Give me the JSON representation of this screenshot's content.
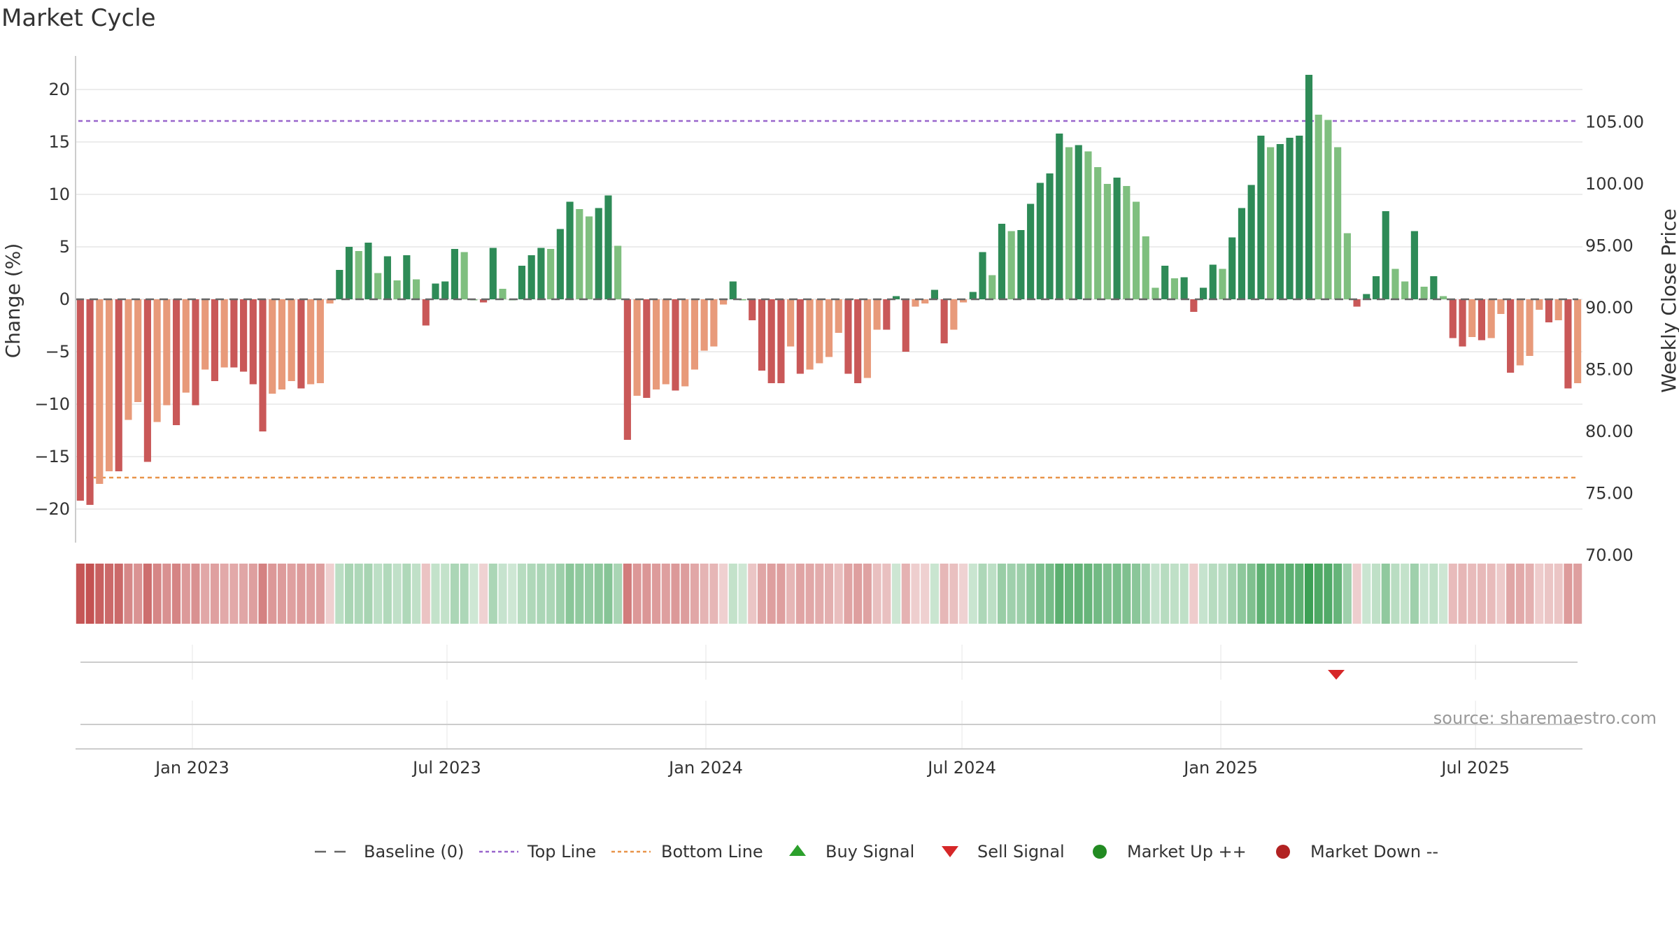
{
  "chart_data": {
    "type": "bar",
    "title": "Market Cycle",
    "ylabel_left": "Change (%)",
    "ylabel_right": "Weekly Close Price",
    "ylim_left": [
      -23,
      23
    ],
    "ylim_right": [
      67.5,
      107.5
    ],
    "yticks_left": [
      "20",
      "15",
      "10",
      "5",
      "0",
      "−5",
      "−10",
      "−15",
      "−20"
    ],
    "yticks_left_values": [
      20,
      15,
      10,
      5,
      0,
      -5,
      -10,
      -15,
      -20
    ],
    "yticks_right": [
      "105.00",
      "100.00",
      "95.00",
      "90.00",
      "85.00",
      "80.00",
      "75.00",
      "70.00"
    ],
    "yticks_right_values": [
      105,
      100,
      95,
      90,
      85,
      80,
      75,
      70
    ],
    "x_start": "2022-10-10",
    "x_end": "2025-09-15",
    "x_ticks": [
      {
        "date": "2023-01-01",
        "label": "Jan 2023"
      },
      {
        "date": "2023-07-01",
        "label": "Jul 2023"
      },
      {
        "date": "2024-01-01",
        "label": "Jan 2024"
      },
      {
        "date": "2024-07-01",
        "label": "Jul 2024"
      },
      {
        "date": "2025-01-01",
        "label": "Jan 2025"
      },
      {
        "date": "2025-07-01",
        "label": "Jul 2025"
      }
    ],
    "top_line": 17,
    "bottom_line": -17,
    "colors": {
      "strong_up": "#2e8b57",
      "weak_up": "#7fbf7f",
      "strong_down": "#c95858",
      "weak_down": "#e89a7a",
      "top_line": "#9966cc",
      "bottom_line": "#e8944a",
      "baseline": "#666666",
      "sell_signal": "#d62728",
      "buy_signal": "#2ca02c"
    },
    "values": [
      -19.2,
      -19.6,
      -17.6,
      -16.4,
      -16.4,
      -11.5,
      -9.8,
      -15.5,
      -11.7,
      -10.1,
      -12,
      -8.9,
      -10.1,
      -6.7,
      -7.8,
      -6.5,
      -6.5,
      -6.9,
      -8.1,
      -12.6,
      -9,
      -8.6,
      -7.8,
      -8.5,
      -8.1,
      -8,
      -0.4,
      2.8,
      5,
      4.6,
      5.4,
      2.5,
      4.1,
      1.8,
      4.2,
      1.9,
      -2.5,
      1.5,
      1.7,
      4.8,
      4.5,
      0,
      -0.3,
      4.9,
      1,
      0,
      3.2,
      4.2,
      4.9,
      4.8,
      6.7,
      9.3,
      8.6,
      7.9,
      8.7,
      9.9,
      5.1,
      -13.4,
      -9.2,
      -9.4,
      -8.6,
      -8.1,
      -8.7,
      -8.3,
      -6.7,
      -4.9,
      -4.5,
      -0.5,
      1.7,
      0,
      -2,
      -6.8,
      -8,
      -8,
      -4.5,
      -7.1,
      -6.7,
      -6.1,
      -5.5,
      -3.2,
      -7.1,
      -8,
      -7.5,
      -2.9,
      -2.9,
      0.3,
      -5,
      -0.7,
      -0.4,
      0.9,
      -4.2,
      -2.9,
      -0.3,
      0.7,
      4.5,
      2.3,
      7.2,
      6.5,
      6.6,
      9.1,
      11.1,
      12,
      15.8,
      14.5,
      14.7,
      14.1,
      12.6,
      11,
      11.6,
      10.8,
      9.3,
      6,
      1.1,
      3.2,
      2,
      2.1,
      -1.2,
      1.1,
      3.3,
      2.9,
      5.9,
      8.7,
      10.9,
      15.6,
      14.5,
      14.8,
      15.4,
      15.6,
      21.4,
      17.6,
      17.1,
      14.5,
      6.3,
      -0.7,
      0.5,
      2.2,
      8.4,
      2.9,
      1.7,
      6.5,
      1.2,
      2.2,
      0.3,
      -3.7,
      -4.5,
      -3.6,
      -3.9,
      -3.7,
      -1.4,
      -7,
      -6.3,
      -5.4,
      -1,
      -2.2,
      -2,
      -8.5,
      -8
    ]
  },
  "signals": {
    "sell": [
      {
        "date": "2025-03-24",
        "label": "Sell Signal"
      }
    ],
    "buy": []
  },
  "source": "source: sharemaestro.com",
  "legend": [
    {
      "key": "baseline",
      "label": "Baseline (0)"
    },
    {
      "key": "top",
      "label": "Top Line"
    },
    {
      "key": "bottom",
      "label": "Bottom Line"
    },
    {
      "key": "buy",
      "label": "Buy Signal"
    },
    {
      "key": "sell",
      "label": "Sell Signal"
    },
    {
      "key": "up",
      "label": "Market Up ++"
    },
    {
      "key": "down",
      "label": "Market Down --"
    }
  ]
}
